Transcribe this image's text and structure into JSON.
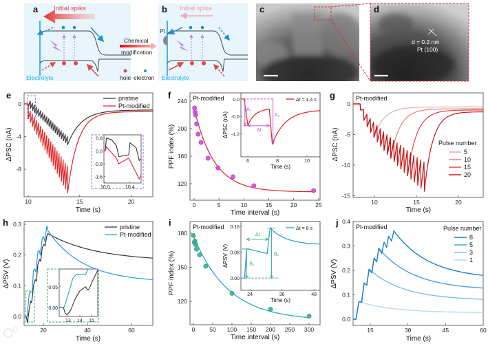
{
  "schematic": {
    "a_label": "a",
    "b_label": "b",
    "initial_spike_a": "Initial spike",
    "initial_spike_b": "Initial spike",
    "pt_label": "Pt",
    "electrolyte_a": "Electrolyte",
    "electrolyte_b": "Electrolyte",
    "arrow_text_1": "Chemical",
    "arrow_text_2": "modification",
    "hole_label": "hole",
    "electron_label": "electron",
    "colors": {
      "hole": "#e04848",
      "electron": "#1e8fd0",
      "excitation": "#b080e0",
      "background": "#e8f5fc"
    }
  },
  "tem": {
    "c_label": "c",
    "d_label": "d",
    "lattice_spacing": "d = 0.2 nm",
    "lattice_plane": "Pt (100)"
  },
  "watermark": "大数跨境",
  "chart_data": [
    {
      "panel": "e",
      "type": "line",
      "title": "",
      "xlabel": "Time (s)",
      "ylabel": "ΔPSC (nA)",
      "xlim": [
        9.6,
        22.1
      ],
      "ylim": [
        -11.37,
        1.35
      ],
      "x_ticks": [
        "10",
        "15",
        "20"
      ],
      "y_ticks": [
        "0",
        "-4",
        "-8"
      ],
      "legend": "top-right",
      "series": [
        {
          "name": "pristine",
          "color": "#333333",
          "pulse_start": 10.0,
          "pulse_interval": 0.2,
          "pulses": 20,
          "trough": [
            -0.3,
            -5.0
          ],
          "peak": [
            0.6,
            -4.0
          ],
          "curve": 1,
          "tail_end": [
            22.1,
            -0.75
          ],
          "tail_tau": 1.3
        },
        {
          "name": "Pt-modified",
          "color": "#e02020",
          "pulse_start": 10.0,
          "pulse_interval": 0.2,
          "pulses": 20,
          "trough": [
            -1.8,
            -10.9
          ],
          "peak": [
            -0.5,
            -7.6
          ],
          "curve": 1,
          "tail_end": [
            22.1,
            -0.95
          ],
          "tail_tau": 1.0
        }
      ],
      "inset": {
        "xlim": [
          9.98,
          10.58
        ],
        "ylim": [
          -2.0,
          1.0
        ],
        "x_ticks": [
          "10.0",
          "10.4"
        ],
        "y_ticks": [
          "0.8",
          "0.0",
          "-0.8",
          "-1.6"
        ],
        "series": [
          {
            "name": "pristine",
            "color": "#333333",
            "path": [
              [
                9.98,
                0
              ],
              [
                10.0,
                0
              ],
              [
                10.02,
                0.8
              ],
              [
                10.1,
                0.7
              ],
              [
                10.18,
                0.35
              ],
              [
                10.22,
                -0.35
              ],
              [
                10.38,
                -0.25
              ],
              [
                10.4,
                0.5
              ],
              [
                10.5,
                0.2
              ],
              [
                10.55,
                -0.6
              ],
              [
                10.58,
                -0.5
              ]
            ]
          },
          {
            "name": "Pt-modified",
            "color": "#e02020",
            "path": [
              [
                9.98,
                0
              ],
              [
                10.0,
                0
              ],
              [
                10.02,
                0.25
              ],
              [
                10.18,
                -0.45
              ],
              [
                10.22,
                -0.8
              ],
              [
                10.38,
                -0.45
              ],
              [
                10.55,
                -1.75
              ],
              [
                10.58,
                -1.5
              ]
            ]
          }
        ]
      }
    },
    {
      "panel": "f",
      "type": "scatter",
      "title": "Pt-modified",
      "xlabel": "Time interval (s)",
      "ylabel": "PPF index (%)",
      "xlim": [
        -0.83,
        25.3
      ],
      "ylim": [
        96,
        252
      ],
      "x_ticks": [
        "0",
        "5",
        "10",
        "15",
        "20",
        "25"
      ],
      "y_ticks": [
        "120",
        "160",
        "200",
        "240"
      ],
      "marker_color": "#c048d8",
      "fit_color": "#e02020",
      "points": [
        [
          0.1,
          230
        ],
        [
          0.2,
          224
        ],
        [
          0.3,
          220
        ],
        [
          0.5,
          207
        ],
        [
          0.8,
          192
        ],
        [
          1.4,
          180
        ],
        [
          2.8,
          157
        ],
        [
          4.8,
          143
        ],
        [
          7.8,
          130
        ],
        [
          12,
          117
        ],
        [
          24,
          110
        ]
      ],
      "fit": {
        "a": 108,
        "b": 122,
        "tau": 4
      },
      "inset": {
        "xlabel": "Time (s)",
        "ylabel": "ΔPSC (nA)",
        "xlim": [
          5.53,
          10.88
        ],
        "ylim": [
          -1.99,
          0.21
        ],
        "x_ticks": [
          "6",
          "8",
          "10"
        ],
        "y_ticks": [
          "0.0",
          "-0.6",
          "-1.2"
        ],
        "legend": "Δt = 1.4 s",
        "annotation_color": "#c048d8",
        "annotations": {
          "a1": "A₁",
          "a2": "A₂",
          "dt": "Δt"
        },
        "series": [
          {
            "name": "Δt = 1.4 s",
            "color": "#e02020",
            "path": [
              [
                5.53,
                0
              ],
              [
                5.75,
                0
              ],
              [
                6.0,
                -0.9
              ],
              {
                "decay_to": [
                  7.45,
                  -0.35
                ],
                "tau": 0.5
              },
              [
                7.65,
                -1.55
              ],
              {
                "decay_to": [
                  10.88,
                  -0.4
                ],
                "tau": 0.9
              }
            ]
          }
        ]
      }
    },
    {
      "panel": "g",
      "type": "line",
      "title": "Pt-modified",
      "xlabel": "Time (s)",
      "ylabel": "ΔPSC (nA)",
      "xlim": [
        7.46,
        22.95
      ],
      "ylim": [
        -15.3,
        1.8
      ],
      "x_ticks": [
        "10",
        "15",
        "20"
      ],
      "y_ticks": [
        "0",
        "-5",
        "-10",
        "-15"
      ],
      "legend_title": "Pulse number",
      "legend": "right",
      "envelope_pulses": 20,
      "series": [
        {
          "name": "5",
          "color": "#f4a8a8",
          "pulse_start": 8.3,
          "pulse_interval": 0.4,
          "pulses": 5,
          "trough": [
            -1.0,
            -14.3
          ],
          "peak": [
            0.3,
            -9.5
          ],
          "curve": 0.7,
          "tail_end": [
            22.95,
            -0.5
          ],
          "tail_tau": 1.2
        },
        {
          "name": "10",
          "color": "#ec7a7a",
          "pulse_start": 8.3,
          "pulse_interval": 0.4,
          "pulses": 10,
          "trough": [
            -1.0,
            -14.3
          ],
          "peak": [
            0.3,
            -9.5
          ],
          "curve": 0.7,
          "tail_end": [
            22.95,
            -0.8
          ],
          "tail_tau": 1.1
        },
        {
          "name": "15",
          "color": "#dc4646",
          "pulse_start": 8.3,
          "pulse_interval": 0.4,
          "pulses": 15,
          "trough": [
            -1.0,
            -14.3
          ],
          "peak": [
            0.3,
            -9.5
          ],
          "curve": 0.7,
          "tail_end": [
            22.95,
            -1.0
          ],
          "tail_tau": 1.1
        },
        {
          "name": "20",
          "color": "#c81414",
          "pulse_start": 8.3,
          "pulse_interval": 0.4,
          "pulses": 20,
          "trough": [
            -1.0,
            -14.3
          ],
          "peak": [
            0.3,
            -9.5
          ],
          "curve": 0.7,
          "tail_end": [
            22.95,
            -1.3
          ],
          "tail_tau": 1.0
        }
      ]
    },
    {
      "panel": "h",
      "type": "line",
      "title": "",
      "xlabel": "Time (s)",
      "ylabel": "ΔPSV (V)",
      "xlim": [
        11.25,
        69.7
      ],
      "ylim": [
        -0.029,
        0.309
      ],
      "x_ticks": [
        "20",
        "40",
        "60"
      ],
      "y_ticks": [
        "0.0",
        "0.1",
        "0.2",
        "0.3"
      ],
      "legend": "top-right",
      "series": [
        {
          "name": "pristine",
          "color": "#333333",
          "path": [
            [
              11.25,
              0
            ],
            [
              12.2,
              0
            ],
            [
              12.8,
              -0.02
            ],
            [
              13.5,
              0.02
            ],
            [
              14.2,
              0.05
            ],
            [
              14.7,
              0.045
            ],
            [
              15.5,
              0.1
            ],
            [
              16.3,
              0.12
            ],
            [
              16.8,
              0.115
            ],
            [
              17.5,
              0.17
            ],
            [
              18.3,
              0.185
            ],
            [
              18.8,
              0.18
            ],
            [
              19.5,
              0.225
            ],
            [
              20.3,
              0.235
            ],
            [
              20.8,
              0.23
            ],
            [
              21.5,
              0.26
            ],
            [
              22.0,
              0.27
            ],
            {
              "decay_to": [
                69.7,
                0.19
              ],
              "tau": 22
            }
          ]
        },
        {
          "name": "Pt-modified",
          "color": "#1e9be0",
          "path": [
            [
              11.25,
              0
            ],
            [
              12.6,
              0
            ],
            [
              13.6,
              0.075
            ],
            [
              14.4,
              0.08
            ],
            [
              14.9,
              0.08
            ],
            [
              15.5,
              0.15
            ],
            [
              16.1,
              0.155
            ],
            [
              16.6,
              0.145
            ],
            [
              17.5,
              0.21
            ],
            [
              18.1,
              0.215
            ],
            [
              18.6,
              0.2
            ],
            [
              19.5,
              0.255
            ],
            [
              20.1,
              0.26
            ],
            [
              20.6,
              0.245
            ],
            [
              21.5,
              0.29
            ],
            [
              21.7,
              0.295
            ],
            [
              22.0,
              0.28
            ],
            {
              "decay_to": [
                69.7,
                0.12
              ],
              "tau": 16
            }
          ]
        }
      ],
      "inset": {
        "xlim": [
          12.24,
          15.53
        ],
        "ylim": [
          -0.022,
          0.093
        ],
        "x_ticks": [
          "13",
          "14",
          "15"
        ],
        "y_ticks": [
          "0.00",
          "0.05"
        ],
        "series": [
          {
            "name": "pristine",
            "color": "#333333",
            "path": [
              [
                12.24,
                0
              ],
              [
                12.6,
                0
              ],
              [
                12.75,
                -0.014
              ],
              [
                12.9,
                -0.018
              ],
              [
                13.2,
                -0.008
              ],
              [
                13.6,
                0.02
              ],
              [
                14.0,
                0.04
              ],
              [
                14.3,
                0.046
              ],
              [
                14.5,
                0.05
              ],
              [
                14.65,
                0.042
              ],
              [
                14.8,
                0.045
              ],
              [
                15.1,
                0.065
              ],
              [
                15.53,
                0.09
              ]
            ]
          },
          {
            "name": "Pt-modified",
            "color": "#1e9be0",
            "path": [
              [
                12.24,
                0
              ],
              [
                12.65,
                0
              ],
              [
                13.0,
                0.03
              ],
              [
                13.4,
                0.07
              ],
              [
                13.7,
                0.08
              ],
              [
                14.5,
                0.08
              ],
              [
                14.7,
                0.093
              ]
            ]
          }
        ]
      }
    },
    {
      "panel": "i",
      "type": "scatter",
      "title": "Pt-modified",
      "xlabel": "Time interval (s)",
      "ylabel": "PPF index (%)",
      "xlim": [
        -8.9,
        328.6
      ],
      "ylim": [
        99.4,
        190.3
      ],
      "x_ticks": [
        "0",
        "50",
        "100",
        "150",
        "200",
        "250",
        "300"
      ],
      "y_ticks": [
        "120",
        "150",
        "180"
      ],
      "marker_color": "#3aa888",
      "fit_color": "#1e9be0",
      "points": [
        [
          0,
          178
        ],
        [
          2,
          172
        ],
        [
          4,
          173
        ],
        [
          6,
          170
        ],
        [
          8,
          166
        ],
        [
          16,
          161
        ],
        [
          32,
          151
        ],
        [
          100,
          127
        ],
        [
          200,
          113
        ],
        [
          300,
          107
        ]
      ],
      "fit": {
        "a": 103,
        "b": 75,
        "tau": 90
      },
      "inset": {
        "xlabel": "Time (s)",
        "ylabel": "ΔPSV (V)",
        "xlim": [
          20.6,
          50.3
        ],
        "ylim": [
          -0.038,
          0.175
        ],
        "x_ticks": [
          "24",
          "36",
          "48"
        ],
        "y_ticks": [
          "0.00",
          "0.08",
          "0.16"
        ],
        "legend": "Δt = 8 s",
        "annotation_color": "#3aa878",
        "annotations": {
          "b1": "B₁",
          "b2": "B₂",
          "dt": "Δt"
        },
        "series": [
          {
            "name": "Δt = 8 s",
            "color": "#1e9be0",
            "path": [
              [
                20.6,
                0
              ],
              [
                22.0,
                0
              ],
              [
                22.4,
                0.05
              ],
              [
                22.8,
                0.09
              ],
              [
                23.5,
                0.09
              ],
              [
                26,
                0.085
              ],
              [
                30.5,
                0.076
              ],
              [
                31.0,
                0.12
              ],
              [
                31.6,
                0.155
              ],
              {
                "decay_to": [
                  50.3,
                  0.105
                ],
                "tau": 6
              }
            ]
          }
        ]
      }
    },
    {
      "panel": "j",
      "type": "line",
      "title": "Pt-modified",
      "xlabel": "Time (s)",
      "ylabel": "ΔPSV (V)",
      "xlim": [
        8.14,
        60
      ],
      "ylim": [
        -0.025,
        0.4
      ],
      "x_ticks": [
        "15",
        "30",
        "45",
        "60"
      ],
      "y_ticks": [
        "0.0",
        "0.1",
        "0.2",
        "0.3",
        "0.4"
      ],
      "legend_title": "Pulse number",
      "legend": "top-right",
      "rise_start": 9.3,
      "pulse_peaks": [
        [
          10.45,
          0.072
        ],
        [
          12.5,
          0.148
        ],
        [
          14.5,
          0.205
        ],
        [
          16.5,
          0.25
        ],
        [
          18.4,
          0.29
        ],
        [
          20.5,
          0.315
        ],
        [
          22.3,
          0.34
        ],
        [
          24.4,
          0.362
        ]
      ],
      "pulse_troughs": [
        0.07,
        0.14,
        0.19,
        0.235,
        0.27,
        0.295,
        0.32
      ],
      "series": [
        {
          "name": "8",
          "color": "#1a7fcf",
          "pulses": 8,
          "end_value": 0.18,
          "tail_tau": 14
        },
        {
          "name": "5",
          "color": "#45a0de",
          "pulses": 5,
          "end_value": 0.128,
          "tail_tau": 14
        },
        {
          "name": "3",
          "color": "#7dbde8",
          "pulses": 3,
          "end_value": 0.082,
          "tail_tau": 14
        },
        {
          "name": "1",
          "color": "#b4dbf3",
          "pulses": 1,
          "end_value": 0.028,
          "tail_tau": 14
        }
      ]
    }
  ]
}
